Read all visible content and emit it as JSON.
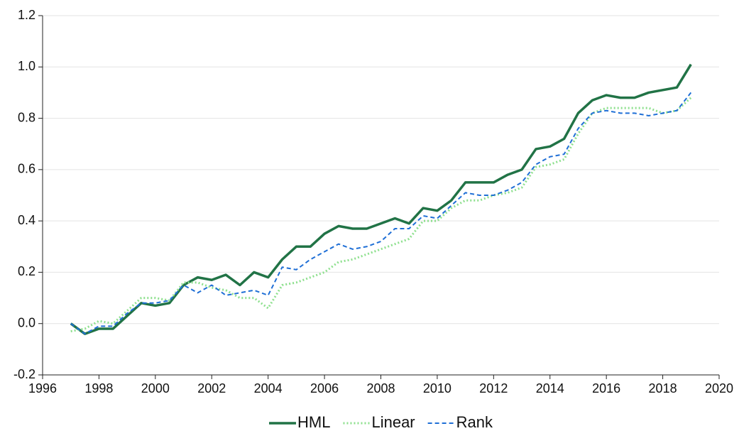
{
  "chart_data": {
    "type": "line",
    "x": [
      1997,
      1997.5,
      1998,
      1998.5,
      1999,
      1999.5,
      2000,
      2000.5,
      2001,
      2001.5,
      2002,
      2002.5,
      2003,
      2003.5,
      2004,
      2004.5,
      2005,
      2005.5,
      2006,
      2006.5,
      2007,
      2007.5,
      2008,
      2008.5,
      2009,
      2009.5,
      2010,
      2010.5,
      2011,
      2011.5,
      2012,
      2012.5,
      2013,
      2013.5,
      2014,
      2014.5,
      2015,
      2015.5,
      2016,
      2016.5,
      2017,
      2017.5,
      2018,
      2018.5,
      2019
    ],
    "series": [
      {
        "name": "HML",
        "color": "#217346",
        "linestyle": "solid",
        "values": [
          0.0,
          -0.04,
          -0.02,
          -0.02,
          0.03,
          0.08,
          0.07,
          0.08,
          0.15,
          0.18,
          0.17,
          0.19,
          0.15,
          0.2,
          0.18,
          0.25,
          0.3,
          0.3,
          0.35,
          0.38,
          0.37,
          0.37,
          0.39,
          0.41,
          0.39,
          0.45,
          0.44,
          0.48,
          0.55,
          0.55,
          0.55,
          0.58,
          0.6,
          0.68,
          0.69,
          0.72,
          0.82,
          0.87,
          0.89,
          0.88,
          0.88,
          0.9,
          0.91,
          0.92,
          1.01
        ]
      },
      {
        "name": "Linear",
        "color": "#8ee08e",
        "linestyle": "dotted",
        "values": [
          -0.03,
          -0.02,
          0.01,
          0.0,
          0.05,
          0.1,
          0.1,
          0.09,
          0.16,
          0.16,
          0.14,
          0.13,
          0.1,
          0.1,
          0.06,
          0.15,
          0.16,
          0.18,
          0.2,
          0.24,
          0.25,
          0.27,
          0.29,
          0.31,
          0.33,
          0.4,
          0.4,
          0.45,
          0.48,
          0.48,
          0.5,
          0.51,
          0.53,
          0.61,
          0.62,
          0.64,
          0.74,
          0.82,
          0.84,
          0.84,
          0.84,
          0.84,
          0.82,
          0.83,
          0.88
        ]
      },
      {
        "name": "Rank",
        "color": "#1f6fd6",
        "linestyle": "dashed",
        "values": [
          0.0,
          -0.04,
          -0.01,
          -0.01,
          0.04,
          0.08,
          0.08,
          0.09,
          0.15,
          0.12,
          0.15,
          0.11,
          0.12,
          0.13,
          0.11,
          0.22,
          0.21,
          0.25,
          0.28,
          0.31,
          0.29,
          0.3,
          0.32,
          0.37,
          0.37,
          0.42,
          0.41,
          0.46,
          0.51,
          0.5,
          0.5,
          0.52,
          0.55,
          0.62,
          0.65,
          0.66,
          0.76,
          0.82,
          0.83,
          0.82,
          0.82,
          0.81,
          0.82,
          0.83,
          0.9
        ]
      }
    ],
    "xlim": [
      1996,
      2020
    ],
    "xticks": [
      1996,
      1998,
      2000,
      2002,
      2004,
      2006,
      2008,
      2010,
      2012,
      2014,
      2016,
      2018,
      2020
    ],
    "ylim": [
      -0.2,
      1.2
    ],
    "yticks": [
      -0.2,
      {
        "value": 0,
        "label": "0.0"
      },
      0.2,
      0.4,
      0.6,
      0.8,
      {
        "value": 1,
        "label": "1.0"
      },
      1.2
    ],
    "grid": true,
    "legend": "bottom"
  }
}
